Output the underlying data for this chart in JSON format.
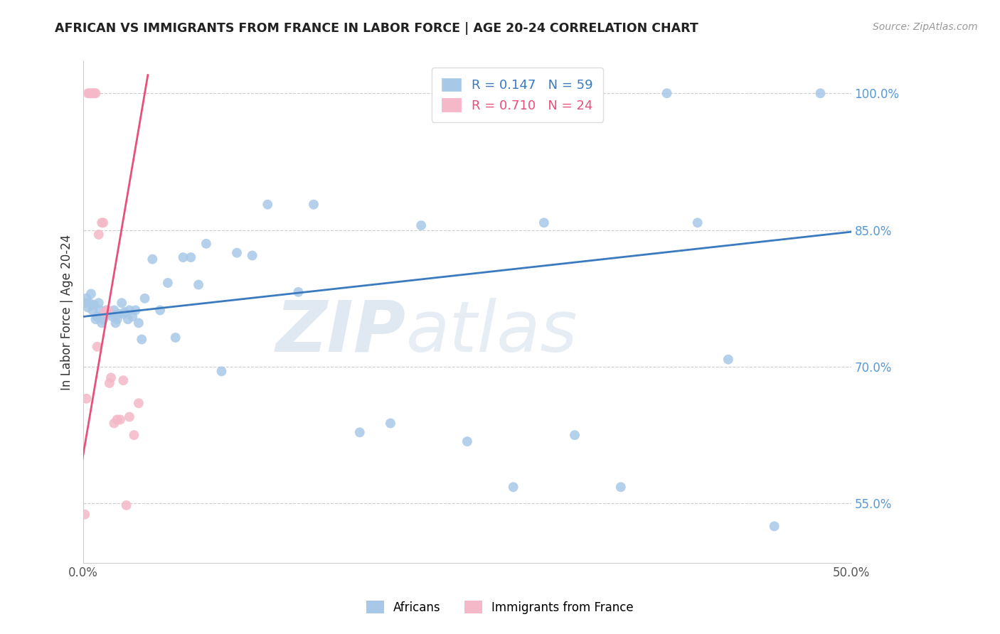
{
  "title": "AFRICAN VS IMMIGRANTS FROM FRANCE IN LABOR FORCE | AGE 20-24 CORRELATION CHART",
  "source": "Source: ZipAtlas.com",
  "ylabel": "In Labor Force | Age 20-24",
  "xlim": [
    0.0,
    0.5
  ],
  "ylim": [
    0.485,
    1.035
  ],
  "yticks": [
    0.55,
    0.7,
    0.85,
    1.0
  ],
  "ytick_labels": [
    "55.0%",
    "70.0%",
    "85.0%",
    "100.0%"
  ],
  "xticks": [
    0.0,
    0.1,
    0.2,
    0.3,
    0.4,
    0.5
  ],
  "xtick_labels": [
    "0.0%",
    "",
    "",
    "",
    "",
    "50.0%"
  ],
  "blue_color": "#a8c8e8",
  "pink_color": "#f4b8c8",
  "trend_blue": "#3a7abf",
  "trend_pink": "#e8507a",
  "legend_blue_r": "R = 0.147",
  "legend_blue_n": "N = 59",
  "legend_pink_r": "R = 0.710",
  "legend_pink_n": "N = 24",
  "watermark_zip": "ZIP",
  "watermark_atlas": "atlas",
  "legend_label_blue": "Africans",
  "legend_label_pink": "Immigrants from France",
  "blue_x": [
    0.001,
    0.002,
    0.003,
    0.004,
    0.005,
    0.006,
    0.007,
    0.008,
    0.009,
    0.01,
    0.011,
    0.012,
    0.013,
    0.014,
    0.015,
    0.016,
    0.018,
    0.019,
    0.02,
    0.021,
    0.022,
    0.023,
    0.025,
    0.026,
    0.027,
    0.029,
    0.03,
    0.032,
    0.034,
    0.036,
    0.038,
    0.04,
    0.045,
    0.05,
    0.055,
    0.06,
    0.065,
    0.07,
    0.075,
    0.08,
    0.09,
    0.1,
    0.11,
    0.12,
    0.14,
    0.15,
    0.18,
    0.2,
    0.22,
    0.25,
    0.28,
    0.3,
    0.32,
    0.35,
    0.38,
    0.4,
    0.42,
    0.45,
    0.48
  ],
  "blue_y": [
    0.77,
    0.775,
    0.765,
    0.77,
    0.78,
    0.762,
    0.768,
    0.752,
    0.755,
    0.77,
    0.762,
    0.748,
    0.752,
    0.758,
    0.762,
    0.76,
    0.758,
    0.755,
    0.762,
    0.748,
    0.752,
    0.758,
    0.77,
    0.758,
    0.76,
    0.752,
    0.762,
    0.755,
    0.762,
    0.748,
    0.73,
    0.775,
    0.818,
    0.762,
    0.792,
    0.732,
    0.82,
    0.82,
    0.79,
    0.835,
    0.695,
    0.825,
    0.822,
    0.878,
    0.782,
    0.878,
    0.628,
    0.638,
    0.855,
    0.618,
    0.568,
    0.858,
    0.625,
    0.568,
    1.0,
    0.858,
    0.708,
    0.525,
    1.0
  ],
  "pink_x": [
    0.001,
    0.002,
    0.003,
    0.004,
    0.005,
    0.006,
    0.007,
    0.008,
    0.009,
    0.01,
    0.012,
    0.013,
    0.014,
    0.016,
    0.017,
    0.018,
    0.02,
    0.022,
    0.024,
    0.026,
    0.028,
    0.03,
    0.033,
    0.036
  ],
  "pink_y": [
    0.538,
    0.665,
    1.0,
    1.0,
    1.0,
    1.0,
    1.0,
    1.0,
    0.722,
    0.845,
    0.858,
    0.858,
    0.76,
    0.762,
    0.682,
    0.688,
    0.638,
    0.642,
    0.642,
    0.685,
    0.548,
    0.645,
    0.625,
    0.66
  ],
  "blue_trend_x": [
    0.0,
    0.5
  ],
  "blue_trend_y": [
    0.755,
    0.848
  ],
  "pink_trend_x": [
    -0.005,
    0.042
  ],
  "pink_trend_y": [
    0.555,
    1.02
  ]
}
